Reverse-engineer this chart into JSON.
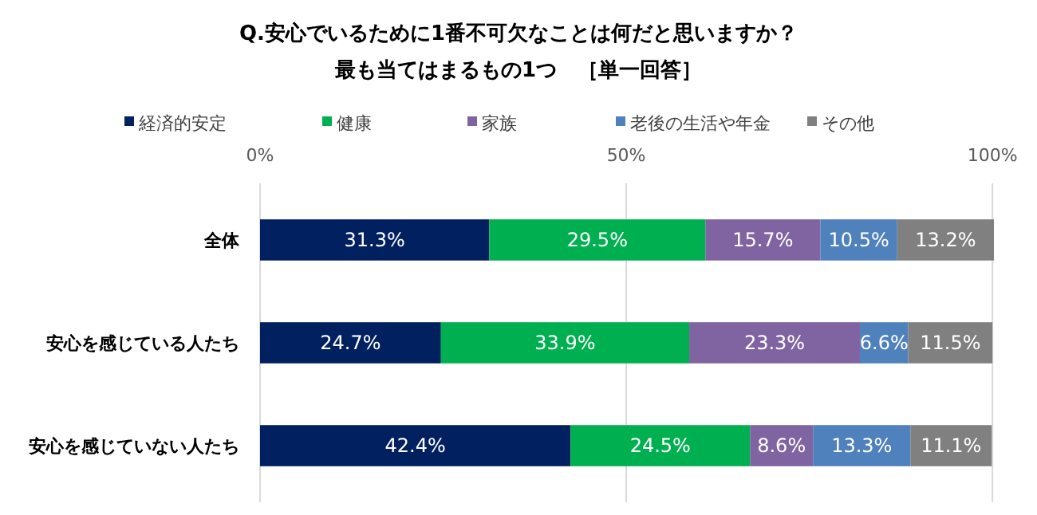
{
  "chart_data": {
    "type": "bar",
    "orientation": "horizontal",
    "stacked": true,
    "title": "Q.安心でいるために1番不可欠なことは何だと思いますか？",
    "subtitle": "最も当てはまるもの1つ　［単一回答］",
    "categories": [
      "全体",
      "安心を感じている人たち",
      "安心を感じていない人たち"
    ],
    "series": [
      {
        "name": "経済的安定",
        "color": "#002060",
        "values": [
          31.3,
          24.7,
          42.4
        ],
        "value_labels": [
          "31.3%",
          "24.7%",
          "42.4%"
        ]
      },
      {
        "name": "健康",
        "color": "#00b050",
        "values": [
          29.5,
          33.9,
          24.5
        ],
        "value_labels": [
          "29.5%",
          "33.9%",
          "24.5%"
        ]
      },
      {
        "name": "家族",
        "color": "#8064a2",
        "values": [
          15.7,
          23.3,
          8.6
        ],
        "value_labels": [
          "15.7%",
          "23.3%",
          "8.6%"
        ]
      },
      {
        "name": "老後の生活や年金",
        "color": "#4f81bd",
        "values": [
          10.5,
          6.6,
          13.3
        ],
        "value_labels": [
          "10.5%",
          "6.6%",
          "13.3%"
        ]
      },
      {
        "name": "その他",
        "color": "#808080",
        "values": [
          13.2,
          11.5,
          11.1
        ],
        "value_labels": [
          "13.2%",
          "11.5%",
          "11.1%"
        ]
      }
    ],
    "xlim": [
      0,
      100.2
    ],
    "xticks": [
      {
        "value": 0,
        "label": "0%"
      },
      {
        "value": 50,
        "label": "50%"
      },
      {
        "value": 100,
        "label": "100%"
      }
    ],
    "grid": "x",
    "legend": "top"
  }
}
